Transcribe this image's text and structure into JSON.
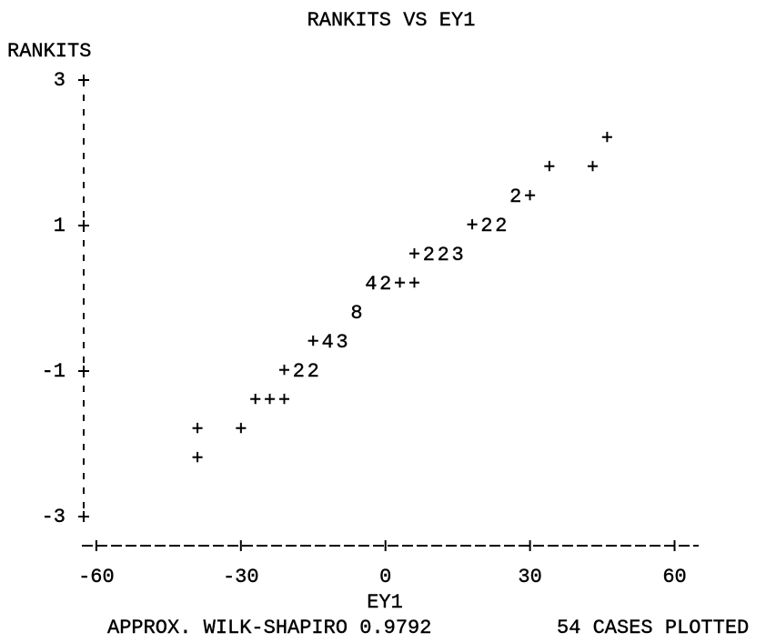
{
  "chart_data": {
    "type": "scatter",
    "title": "RANKITS VS EY1",
    "y_label": "RANKITS",
    "x_label": "EY1",
    "annotations": [
      "APPROX. WILK-SHAPIRO 0.9792",
      "54 CASES PLOTTED"
    ],
    "x": [
      46,
      34,
      43,
      27,
      30,
      18,
      21,
      24,
      6,
      9,
      12,
      15,
      -3,
      0,
      3,
      6,
      -6,
      -15,
      -12,
      -9,
      -21,
      -18,
      -15,
      -27,
      -24,
      -21,
      -39,
      -30,
      -39
    ],
    "values": [
      2.2,
      1.8,
      1.8,
      1.4,
      1.4,
      1.0,
      1.0,
      1.0,
      0.6,
      0.6,
      0.6,
      0.6,
      0.2,
      0.2,
      0.2,
      0.2,
      -0.2,
      -0.6,
      -0.6,
      -0.6,
      -1.0,
      -1.0,
      -1.0,
      -1.4,
      -1.4,
      -1.4,
      -1.8,
      -1.8,
      -2.2
    ],
    "markers": [
      "+",
      "+",
      "+",
      "2",
      "+",
      "+",
      "2",
      "2",
      "+",
      "2",
      "2",
      "3",
      "4",
      "2",
      "+",
      "+",
      "8",
      "+",
      "4",
      "3",
      "+",
      "2",
      "2",
      "+",
      "+",
      "+",
      "+",
      "+",
      "+"
    ],
    "color": "#000000",
    "xlim": [
      -63,
      65
    ],
    "ylim": [
      -3.4,
      3
    ],
    "xticks": [
      -60,
      -30,
      0,
      30,
      60
    ],
    "yticks": [
      3,
      1,
      -1,
      -3
    ]
  }
}
